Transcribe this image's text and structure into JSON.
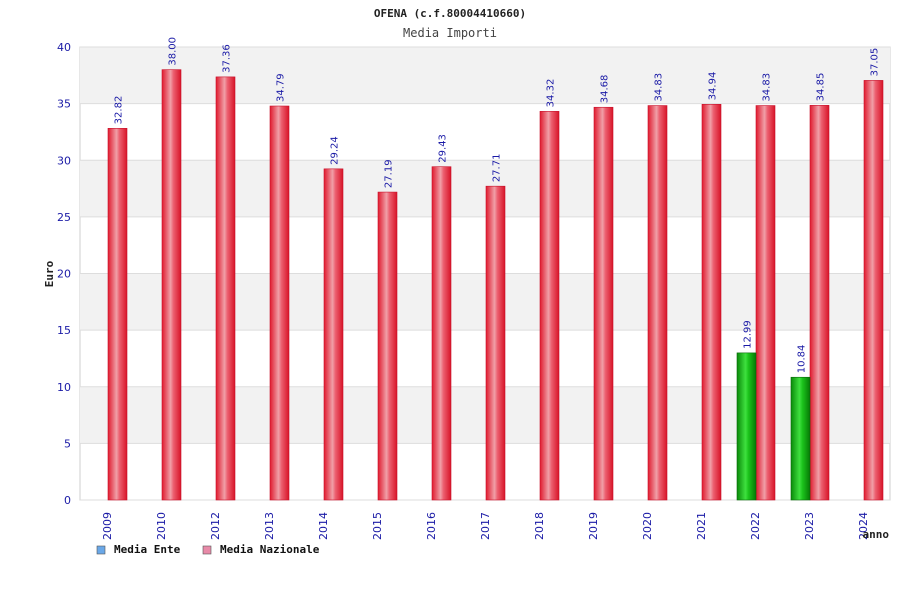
{
  "chart_data": {
    "type": "bar",
    "title": "OFENA (c.f.80004410660)",
    "subtitle": "Media Importi",
    "xlabel": "anno",
    "ylabel": "Euro",
    "ylim": [
      0,
      40
    ],
    "yticks": [
      0,
      5,
      10,
      15,
      20,
      25,
      30,
      35,
      40
    ],
    "grid": true,
    "legend_position": "bottom-left",
    "categories": [
      "2009",
      "2010",
      "2012",
      "2013",
      "2014",
      "2015",
      "2016",
      "2017",
      "2018",
      "2019",
      "2020",
      "2021",
      "2022",
      "2023",
      "2024"
    ],
    "series": [
      {
        "name": "Media Ente",
        "legend_color": "#6aa8e8",
        "bar_color": "#14b814",
        "values": [
          null,
          null,
          null,
          null,
          null,
          null,
          null,
          null,
          null,
          null,
          null,
          null,
          12.99,
          10.84,
          null
        ]
      },
      {
        "name": "Media Nazionale",
        "legend_color": "#e88aa8",
        "bar_color": "#e8283c",
        "values": [
          32.82,
          38.0,
          37.36,
          34.79,
          29.24,
          27.19,
          29.43,
          27.71,
          34.32,
          34.68,
          34.83,
          34.94,
          34.83,
          34.85,
          37.05
        ]
      }
    ],
    "value_labels": {
      "Media Ente": [
        null,
        null,
        null,
        null,
        null,
        null,
        null,
        null,
        null,
        null,
        null,
        null,
        "12.99",
        "10.84",
        null
      ],
      "Media Nazionale": [
        "32.82",
        "38.00",
        "37.36",
        "34.79",
        "29.24",
        "27.19",
        "29.43",
        "27.71",
        "34.32",
        "34.68",
        "34.83",
        "34.94",
        "34.83",
        "34.85",
        "37.05"
      ]
    }
  }
}
